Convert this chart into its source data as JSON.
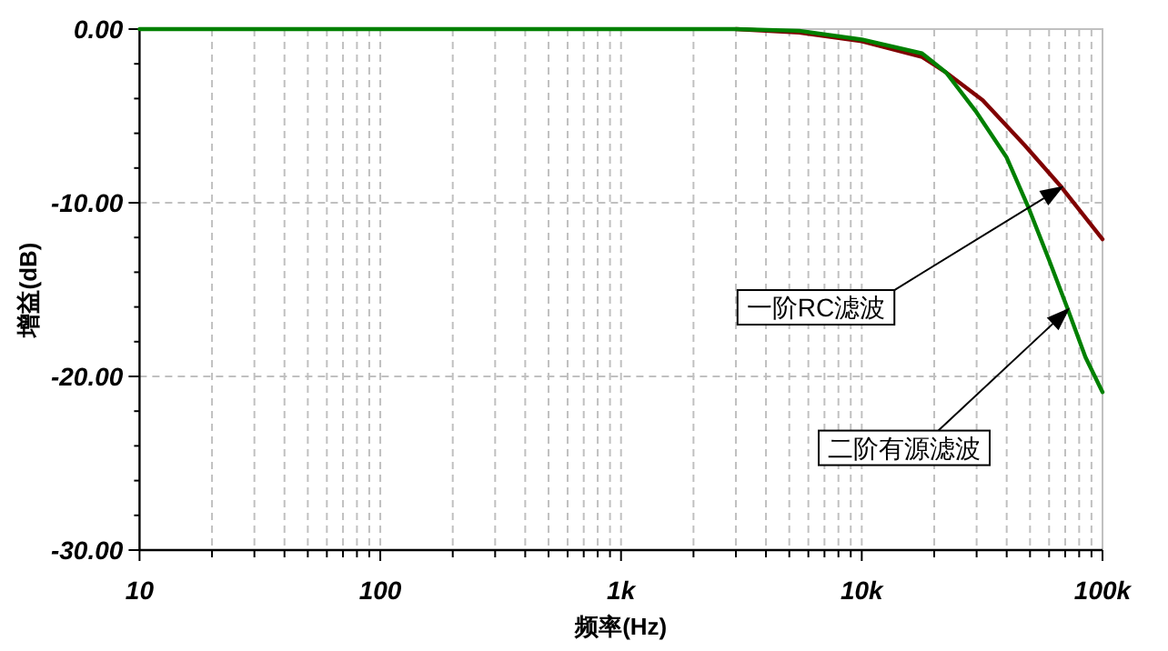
{
  "chart_data": {
    "type": "line",
    "xlabel": "频率(Hz)",
    "ylabel": "增益(dB)",
    "log": "x",
    "grid": true,
    "marker": "none",
    "line_style": "solid",
    "xlim": [
      10,
      100000
    ],
    "ylim": [
      -30,
      0
    ],
    "xticks": [
      10,
      100,
      {
        "value": 1000,
        "label": "1k"
      },
      {
        "value": 10000,
        "label": "10k"
      },
      {
        "value": 100000,
        "label": "100k"
      }
    ],
    "yticks": [
      {
        "value": 0,
        "label": "0.00"
      },
      {
        "value": -10,
        "label": "-10.00"
      },
      {
        "value": -20,
        "label": "-20.00"
      },
      {
        "value": -30,
        "label": "-30.00"
      }
    ],
    "series": [
      {
        "color": "#800000",
        "x": [
          3000,
          5500,
          10000,
          17800,
          22400,
          31800,
          47600,
          67500,
          100000
        ],
        "values": [
          0,
          -0.2,
          -0.7,
          -1.6,
          -2.5,
          -4.1,
          -6.7,
          -9.1,
          -12.1
        ]
      },
      {
        "color": "#008000",
        "x": [
          10,
          100,
          1000,
          3000,
          5500,
          10000,
          17800,
          22400,
          30000,
          40000,
          49000,
          60000,
          71600,
          85000,
          100000
        ],
        "values": [
          0,
          0,
          0,
          0,
          -0.1,
          -0.6,
          -1.4,
          -2.5,
          -4.8,
          -7.4,
          -10.2,
          -13.3,
          -16.1,
          -18.9,
          -20.9
        ]
      }
    ],
    "annotations": [
      "一阶RC滤波",
      "二阶有源滤波"
    ]
  }
}
